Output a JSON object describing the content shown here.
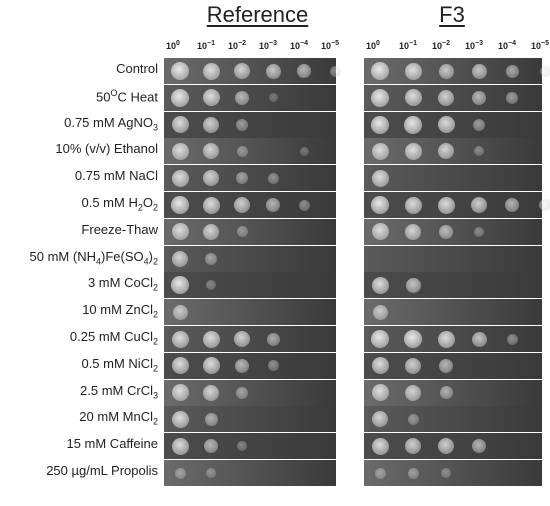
{
  "panels": {
    "reference": "Reference",
    "f3": "F3"
  },
  "dilutions": [
    {
      "base": "10",
      "exp": "0"
    },
    {
      "base": "10",
      "exp": "−1"
    },
    {
      "base": "10",
      "exp": "−2"
    },
    {
      "base": "10",
      "exp": "−3"
    },
    {
      "base": "10",
      "exp": "−4"
    },
    {
      "base": "10",
      "exp": "−5"
    }
  ],
  "conditions": [
    {
      "pre": "Control",
      "sub": "",
      "mid": "",
      "sub2": "",
      "post": "",
      "sup": ""
    },
    {
      "pre": "50",
      "sup": "O",
      "post": "C Heat",
      "sub": "",
      "mid": "",
      "sub2": ""
    },
    {
      "pre": "0.75 mM AgNO",
      "sub": "3",
      "mid": "",
      "sub2": "",
      "post": "",
      "sup": ""
    },
    {
      "pre": "10% (v/v) Ethanol",
      "sub": "",
      "mid": "",
      "sub2": "",
      "post": "",
      "sup": ""
    },
    {
      "pre": "0.75 mM NaCl",
      "sub": "",
      "mid": "",
      "sub2": "",
      "post": "",
      "sup": ""
    },
    {
      "pre": "0.5 mM H",
      "sub": "2",
      "mid": "O",
      "sub2": "2",
      "post": "",
      "sup": ""
    },
    {
      "pre": "Freeze-Thaw",
      "sub": "",
      "mid": "",
      "sub2": "",
      "post": "",
      "sup": ""
    },
    {
      "pre": "50 mM (NH",
      "sub": "4",
      "mid": ")Fe(SO",
      "sub2": "4",
      "post": ")",
      "sub3": "2",
      "sup": ""
    },
    {
      "pre": "3 mM CoCl",
      "sub": "2",
      "mid": "",
      "sub2": "",
      "post": "",
      "sup": ""
    },
    {
      "pre": "10 mM ZnCl",
      "sub": "2",
      "mid": "",
      "sub2": "",
      "post": "",
      "sup": ""
    },
    {
      "pre": "0.25 mM CuCl",
      "sub": "2",
      "mid": "",
      "sub2": "",
      "post": "",
      "sup": ""
    },
    {
      "pre": "0.5 mM NiCl",
      "sub": "2",
      "mid": "",
      "sub2": "",
      "post": "",
      "sup": ""
    },
    {
      "pre": "2.5 mM CrCl",
      "sub": "3",
      "mid": "",
      "sub2": "",
      "post": "",
      "sup": ""
    },
    {
      "pre": "20 mM MnCl",
      "sub": "2",
      "mid": "",
      "sub2": "",
      "post": "",
      "sup": ""
    },
    {
      "pre": "15 mM Caffeine",
      "sub": "",
      "mid": "",
      "sub2": "",
      "post": "",
      "sup": ""
    },
    {
      "pre": "250 µg/mL Propolis",
      "sub": "",
      "mid": "",
      "sub2": "",
      "post": "",
      "sup": ""
    }
  ],
  "growth": {
    "reference": [
      [
        1.0,
        0.9,
        0.8,
        0.7,
        0.6,
        0.3
      ],
      [
        1.0,
        0.9,
        0.6,
        0.1,
        0.0,
        0.0
      ],
      [
        0.9,
        0.8,
        0.4,
        0.0,
        0.0,
        0.0
      ],
      [
        0.9,
        0.8,
        0.3,
        0.0,
        0.1,
        0.0
      ],
      [
        0.9,
        0.8,
        0.4,
        0.3,
        0.0,
        0.0
      ],
      [
        1.0,
        0.9,
        0.8,
        0.6,
        0.3,
        0.0
      ],
      [
        0.9,
        0.8,
        0.3,
        0.0,
        0.0,
        0.0
      ],
      [
        0.8,
        0.4,
        0.0,
        0.0,
        0.0,
        0.0
      ],
      [
        1.0,
        0.2,
        0.0,
        0.0,
        0.0,
        0.0
      ],
      [
        0.7,
        0.0,
        0.0,
        0.0,
        0.0,
        0.0
      ],
      [
        0.9,
        0.9,
        0.8,
        0.5,
        0.0,
        0.0
      ],
      [
        0.9,
        0.9,
        0.6,
        0.3,
        0.0,
        0.0
      ],
      [
        0.9,
        0.8,
        0.4,
        0.0,
        0.0,
        0.0
      ],
      [
        0.9,
        0.5,
        0.0,
        0.0,
        0.0,
        0.0
      ],
      [
        0.9,
        0.6,
        0.2,
        0.0,
        0.0,
        0.0
      ],
      [
        0.3,
        0.2,
        0.0,
        0.0,
        0.0,
        0.0
      ]
    ],
    "f3": [
      [
        1.0,
        0.9,
        0.7,
        0.7,
        0.5,
        0.3
      ],
      [
        1.0,
        0.9,
        0.8,
        0.6,
        0.4,
        0.0
      ],
      [
        1.0,
        1.0,
        0.9,
        0.4,
        0.0,
        0.0
      ],
      [
        0.9,
        0.9,
        0.8,
        0.2,
        0.0,
        0.0
      ],
      [
        0.9,
        0.0,
        0.0,
        0.0,
        0.0,
        0.0
      ],
      [
        1.0,
        0.9,
        0.9,
        0.8,
        0.6,
        0.4
      ],
      [
        0.9,
        0.8,
        0.6,
        0.2,
        0.0,
        0.0
      ],
      [
        0.0,
        0.0,
        0.0,
        0.0,
        0.0,
        0.0
      ],
      [
        0.9,
        0.7,
        0.0,
        0.0,
        0.0,
        0.0
      ],
      [
        0.7,
        0.0,
        0.0,
        0.0,
        0.0,
        0.0
      ],
      [
        1.0,
        1.0,
        0.9,
        0.7,
        0.3,
        0.0
      ],
      [
        0.9,
        0.8,
        0.6,
        0.0,
        0.0,
        0.0
      ],
      [
        0.9,
        0.8,
        0.5,
        0.0,
        0.0,
        0.0
      ],
      [
        0.8,
        0.3,
        0.0,
        0.0,
        0.0,
        0.0
      ],
      [
        0.9,
        0.8,
        0.8,
        0.6,
        0.0,
        0.0
      ],
      [
        0.3,
        0.3,
        0.2,
        0.0,
        0.0,
        0.0
      ]
    ]
  },
  "colors": {
    "plate_dark": "#3a3a3a",
    "plate_light": "#6b6b6b",
    "colony": "#e0e0e0"
  }
}
